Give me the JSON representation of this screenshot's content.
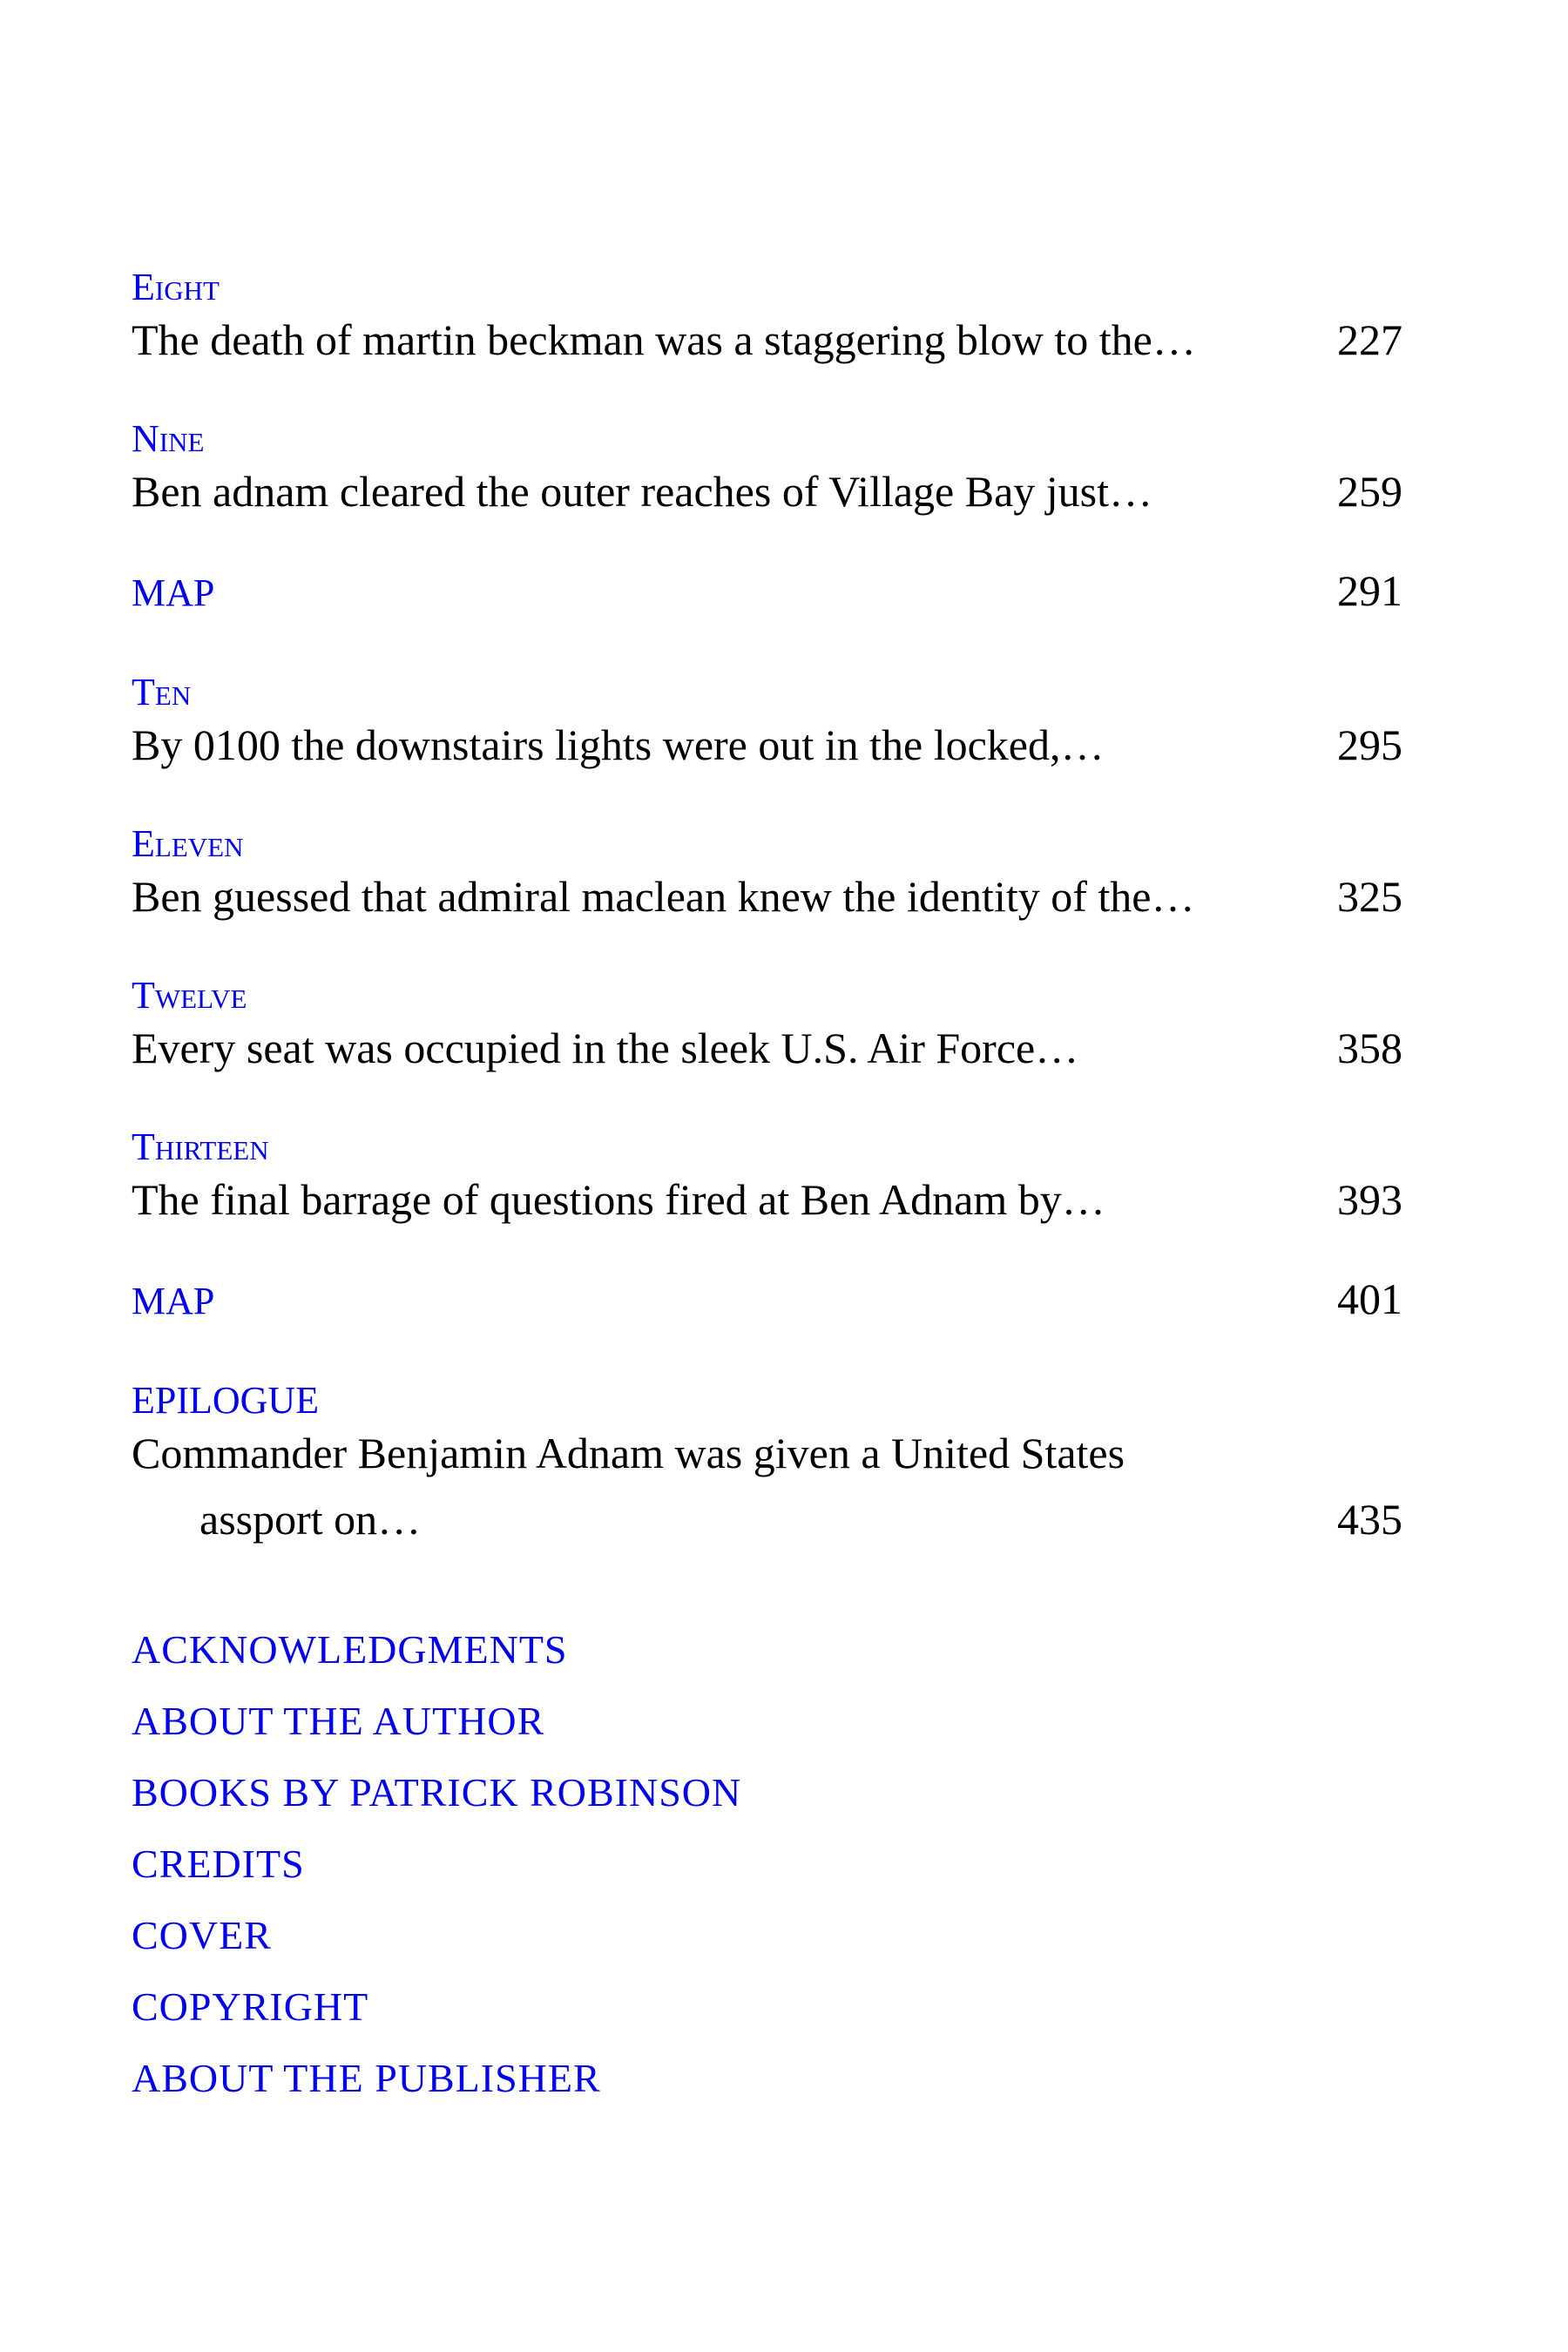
{
  "page": {
    "background_color": "#ffffff",
    "link_color": "#0000ee",
    "text_color": "#000000"
  },
  "toc": {
    "entries": [
      {
        "heading": "Eight",
        "description": "The death of martin beckman was a staggering blow to the…",
        "page": "227"
      },
      {
        "heading": "Nine",
        "description": "Ben adnam cleared the outer reaches of Village Bay just…",
        "page": "259"
      },
      {
        "heading": "MAP",
        "page": "291"
      },
      {
        "heading": "Ten",
        "description": "By 0100 the downstairs lights were out in the locked,…",
        "page": "295"
      },
      {
        "heading": "Eleven",
        "description": "Ben guessed that admiral maclean knew the identity of the…",
        "page": "325"
      },
      {
        "heading": "Twelve",
        "description": "Every seat was occupied in the sleek U.S. Air Force…",
        "page": "358"
      },
      {
        "heading": "Thirteen",
        "description": "The final barrage of questions fired at Ben Adnam by…",
        "page": "393"
      },
      {
        "heading": "MAP",
        "page": "401"
      },
      {
        "heading": "EPILOGUE",
        "description_line1": "Commander Benjamin Adnam was given a United States",
        "description_line2": "assport on…",
        "page": "435"
      }
    ],
    "links": [
      {
        "label": "ACKNOWLEDGMENTS"
      },
      {
        "label": "ABOUT THE AUTHOR"
      },
      {
        "label": "BOOKS BY PATRICK ROBINSON"
      },
      {
        "label": "CREDITS"
      },
      {
        "label": "COVER"
      },
      {
        "label": "COPYRIGHT"
      },
      {
        "label": "ABOUT THE PUBLISHER"
      }
    ]
  }
}
